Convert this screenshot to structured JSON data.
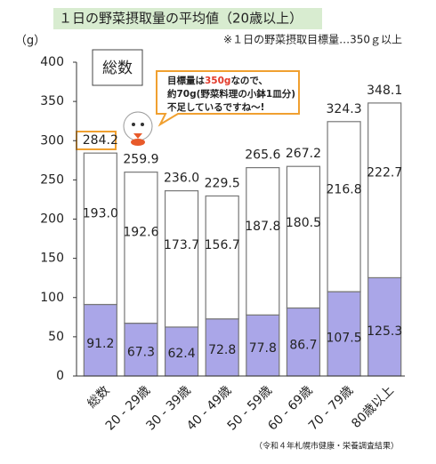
{
  "chart_data": {
    "type": "stacked-bar",
    "title": "１日の野菜摂取量の平均値（20歳以上）",
    "subtitle": "※１日の野菜摂取目標量…350ｇ以上",
    "y_unit": "（g）",
    "box_label": "総数",
    "callout_lines": [
      [
        "目標量は",
        "350g",
        "なので、"
      ],
      [
        "約70g(野菜料理の小鉢1皿分)"
      ],
      [
        "不足しているですね〜!"
      ]
    ],
    "source": "（令和４年札幌市健康・栄養調査結果）",
    "categories": [
      "総数",
      "20 - 29歳",
      "30 - 39歳",
      "40 - 49歳",
      "50 - 59歳",
      "60 - 69歳",
      "70 - 79歳",
      "80歳以上"
    ],
    "series": [
      {
        "color": "#aaa6e8",
        "values": [
          91.2,
          67.3,
          62.4,
          72.8,
          77.8,
          86.7,
          107.5,
          125.3
        ]
      },
      {
        "color": "#ffffff",
        "values": [
          193.0,
          192.6,
          173.7,
          156.7,
          187.8,
          180.5,
          216.8,
          222.7
        ],
        "value_labels": [
          "193.0",
          "192.6",
          "173.7",
          "156.7",
          "187.8",
          "180.5",
          "216.8",
          "222.7"
        ]
      }
    ],
    "totals": {
      "values": [
        284.2,
        259.9,
        236.0,
        229.5,
        265.6,
        267.2,
        324.3,
        348.1
      ],
      "value_labels": [
        "284.2",
        "259.9",
        "236.0",
        "229.5",
        "265.6",
        "267.2",
        "324.3",
        "348.1"
      ]
    },
    "ylim": [
      0,
      400
    ],
    "yticks": [
      0,
      50,
      100,
      150,
      200,
      250,
      300,
      350,
      400
    ]
  }
}
